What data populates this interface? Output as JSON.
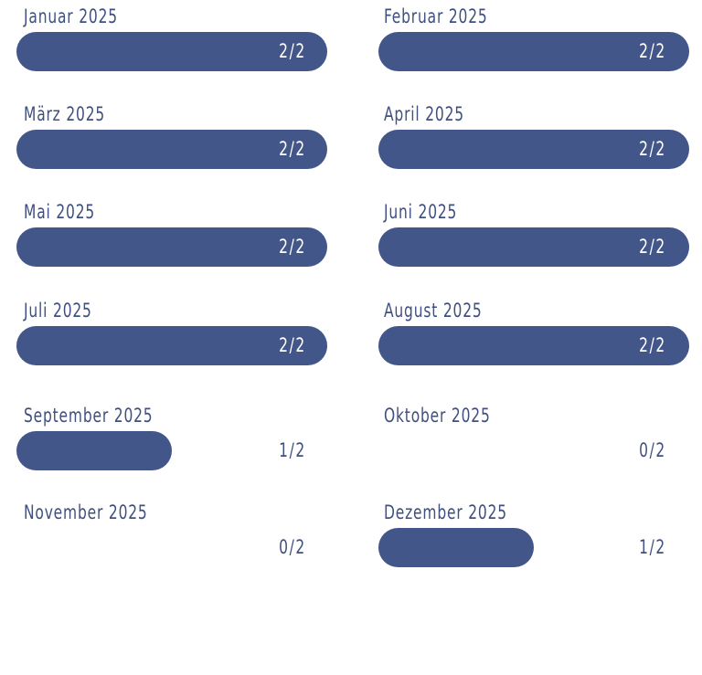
{
  "months": [
    {
      "label": "Januar 2025",
      "progress": "2/2"
    },
    {
      "label": "Februar 2025",
      "progress": "2/2"
    },
    {
      "label": "März 2025",
      "progress": "2/2"
    },
    {
      "label": "April 2025",
      "progress": "2/2"
    },
    {
      "label": "Mai 2025",
      "progress": "2/2"
    },
    {
      "label": "Juni 2025",
      "progress": "2/2"
    },
    {
      "label": "Juli 2025",
      "progress": "2/2"
    },
    {
      "label": "August 2025",
      "progress": "2/2"
    },
    {
      "label": "September 2025",
      "progress": "1/2"
    },
    {
      "label": "Oktober 2025",
      "progress": "0/2"
    },
    {
      "label": "November 2025",
      "progress": "0/2"
    },
    {
      "label": "Dezember 2025",
      "progress": "1/2"
    }
  ]
}
